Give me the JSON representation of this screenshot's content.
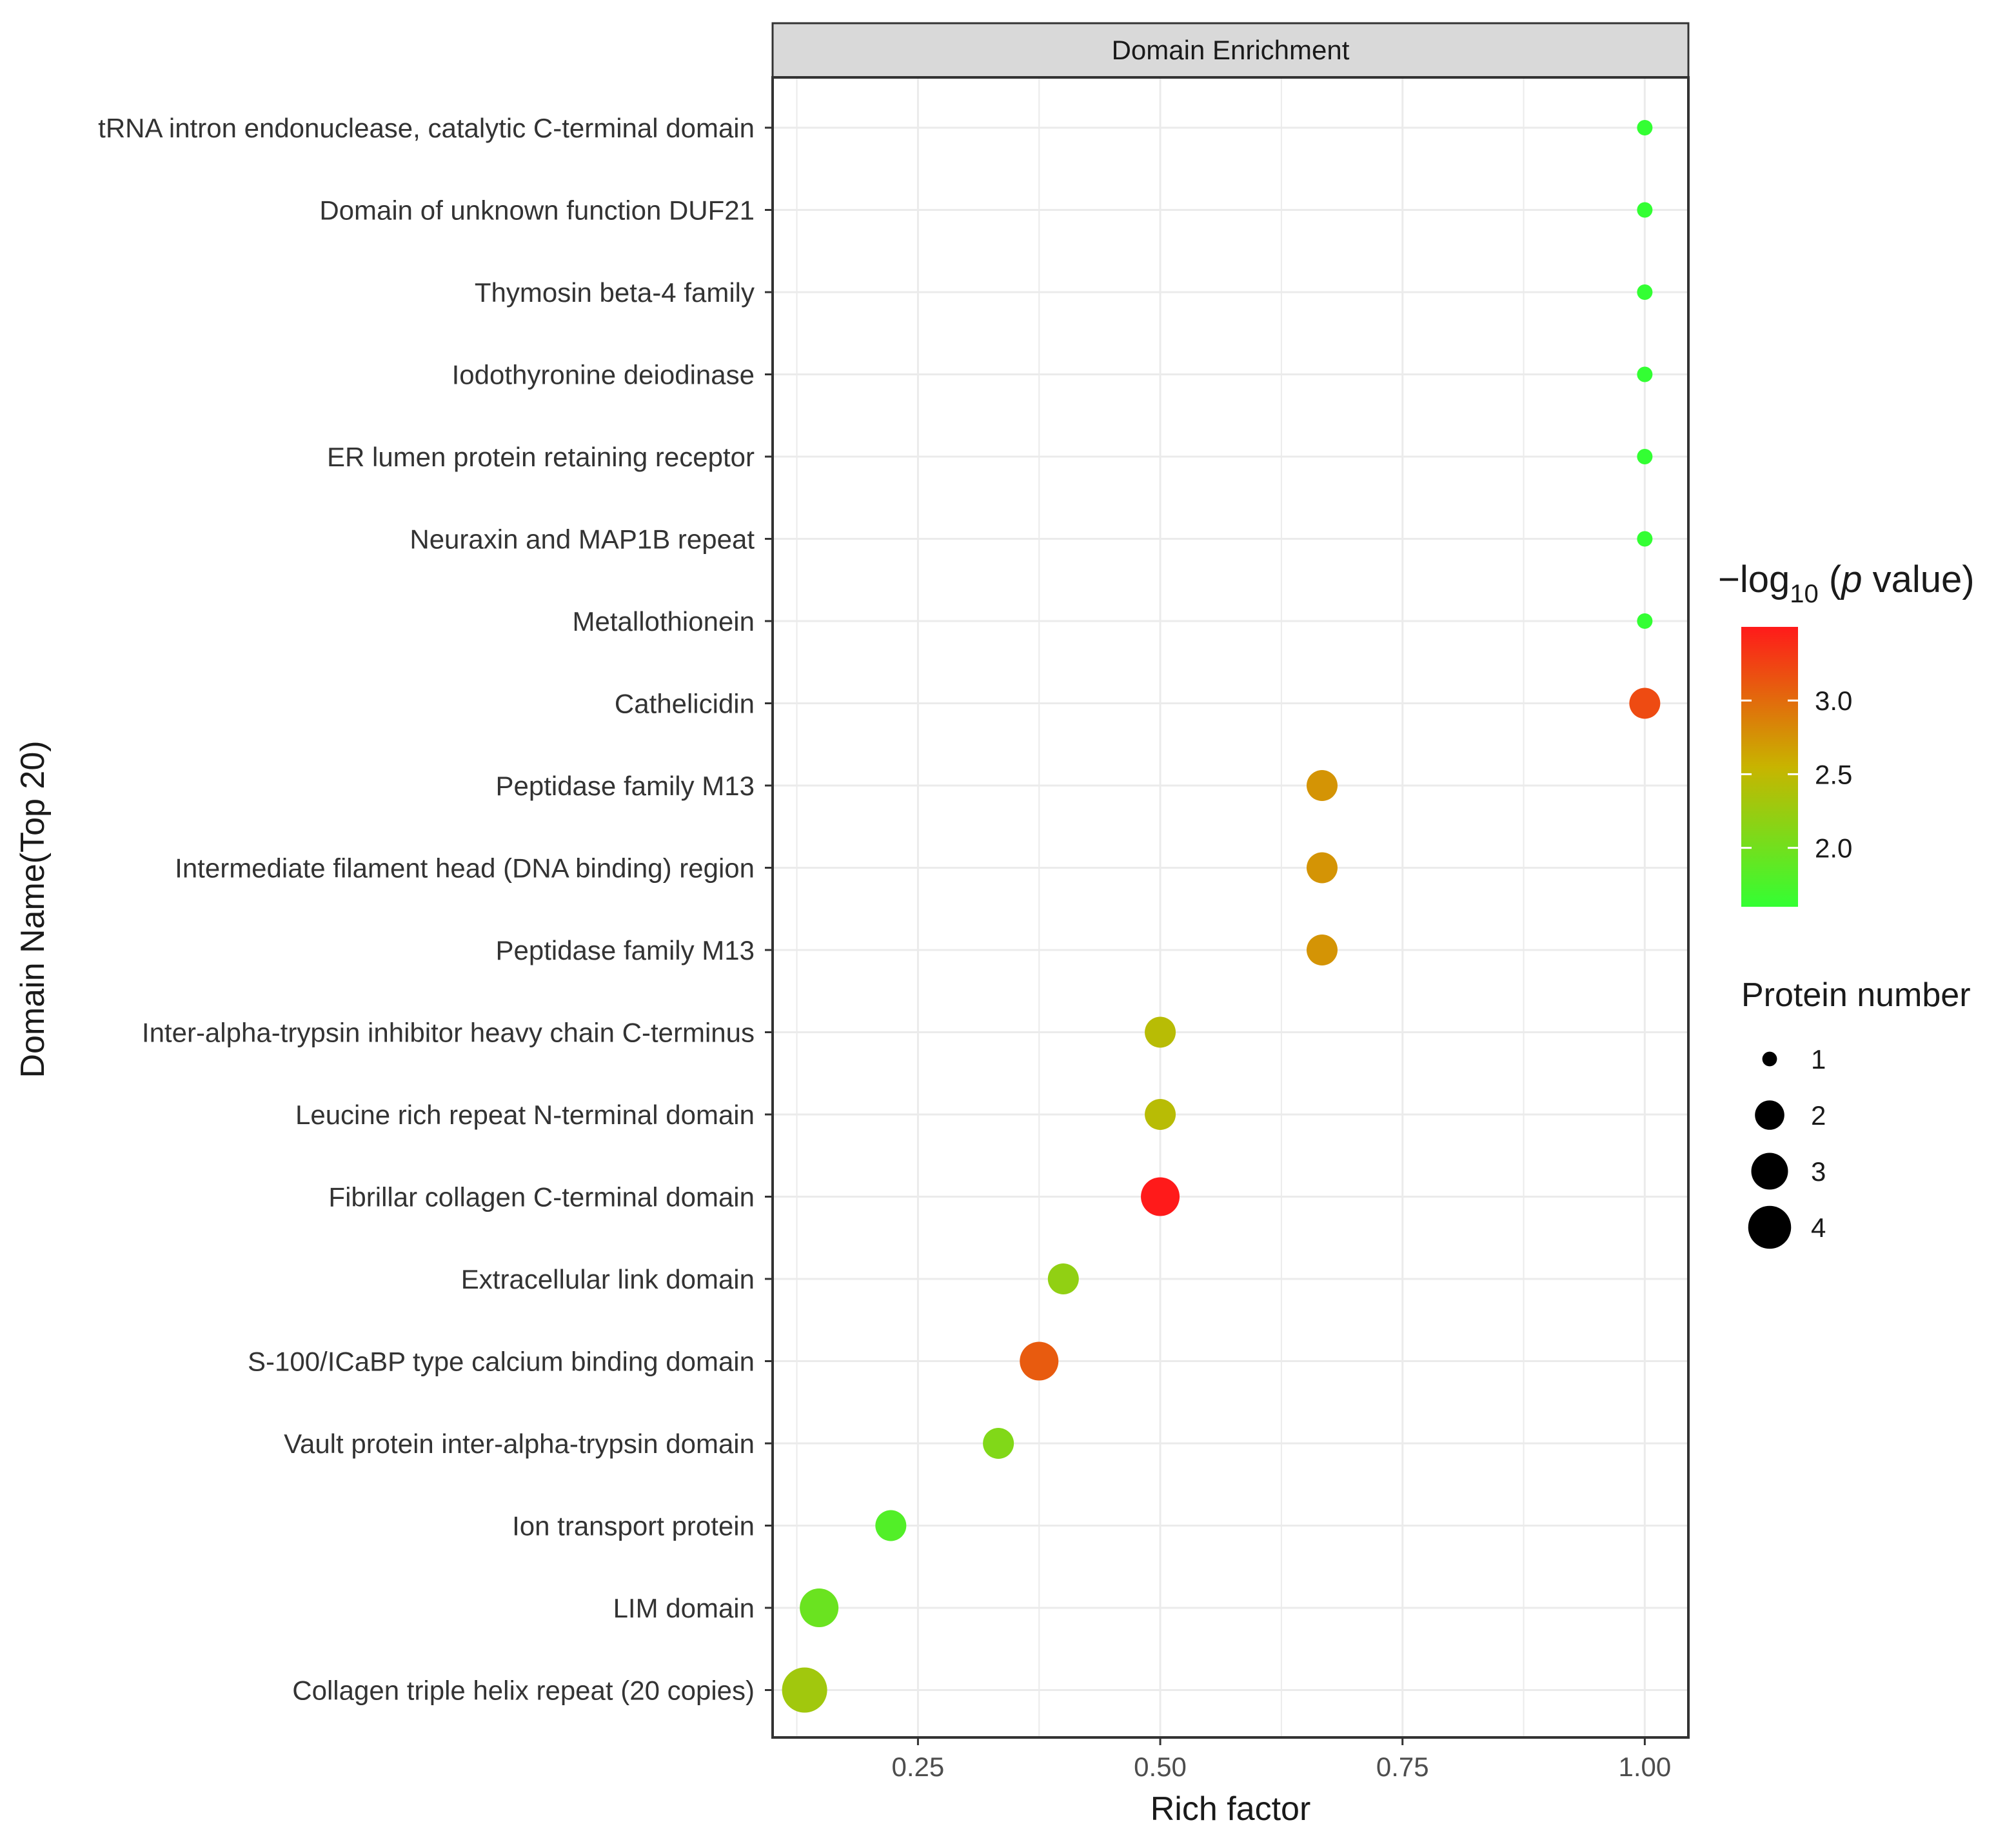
{
  "chart_data": {
    "type": "scatter",
    "title": "Domain Enrichment",
    "xlabel": "Rich factor",
    "ylabel": "Domain Name(Top 20)",
    "xlim": [
      0.1,
      1.045
    ],
    "xticks": [
      0.25,
      0.5,
      0.75,
      1.0
    ],
    "xtick_labels": [
      "0.25",
      "0.50",
      "0.75",
      "1.00"
    ],
    "grid": true,
    "legend_position": "right",
    "color_legend": {
      "title_main": "−log",
      "title_sub": "10",
      "title_paren_open": " (",
      "title_p": "p",
      "title_rest": " value)",
      "min": 1.6,
      "max": 3.5,
      "ticks": [
        3.0,
        2.5,
        2.0
      ],
      "tick_labels": [
        "3.0",
        "2.5",
        "2.0"
      ],
      "color_low": "#33ff33",
      "color_mid": "#c8b400",
      "color_high": "#ff1a1a"
    },
    "size_legend": {
      "title": "Protein number",
      "values": [
        1,
        2,
        3,
        4
      ],
      "labels": [
        "1",
        "2",
        "3",
        "4"
      ]
    },
    "points": [
      {
        "label": "tRNA intron endonuclease, catalytic C-terminal domain",
        "x": 1.0,
        "size": 1,
        "neglog10p": 1.6
      },
      {
        "label": "Domain of unknown function DUF21",
        "x": 1.0,
        "size": 1,
        "neglog10p": 1.6
      },
      {
        "label": "Thymosin beta-4 family",
        "x": 1.0,
        "size": 1,
        "neglog10p": 1.6
      },
      {
        "label": "Iodothyronine deiodinase",
        "x": 1.0,
        "size": 1,
        "neglog10p": 1.6
      },
      {
        "label": "ER lumen protein retaining receptor",
        "x": 1.0,
        "size": 1,
        "neglog10p": 1.6
      },
      {
        "label": "Neuraxin and MAP1B repeat",
        "x": 1.0,
        "size": 1,
        "neglog10p": 1.6
      },
      {
        "label": "Metallothionein",
        "x": 1.0,
        "size": 1,
        "neglog10p": 1.6
      },
      {
        "label": "Cathelicidin",
        "x": 1.0,
        "size": 2,
        "neglog10p": 3.2
      },
      {
        "label": "Peptidase family M13",
        "x": 0.667,
        "size": 2,
        "neglog10p": 2.75
      },
      {
        "label": "Intermediate filament head (DNA binding) region",
        "x": 0.667,
        "size": 2,
        "neglog10p": 2.75
      },
      {
        "label": "Peptidase family M13",
        "x": 0.667,
        "size": 2,
        "neglog10p": 2.75
      },
      {
        "label": "Inter-alpha-trypsin inhibitor heavy chain C-terminus",
        "x": 0.5,
        "size": 2,
        "neglog10p": 2.45
      },
      {
        "label": "Leucine rich repeat N-terminal domain",
        "x": 0.5,
        "size": 2,
        "neglog10p": 2.45
      },
      {
        "label": "Fibrillar collagen C-terminal domain",
        "x": 0.5,
        "size": 3,
        "neglog10p": 3.5
      },
      {
        "label": "Extracellular link domain",
        "x": 0.4,
        "size": 2,
        "neglog10p": 2.2
      },
      {
        "label": "S-100/ICaBP type calcium binding domain",
        "x": 0.375,
        "size": 3,
        "neglog10p": 3.1
      },
      {
        "label": "Vault protein inter-alpha-trypsin domain",
        "x": 0.333,
        "size": 2,
        "neglog10p": 2.1
      },
      {
        "label": "Ion transport protein",
        "x": 0.222,
        "size": 2,
        "neglog10p": 1.8
      },
      {
        "label": "LIM domain",
        "x": 0.148,
        "size": 3,
        "neglog10p": 1.95
      },
      {
        "label": "Collagen triple helix repeat (20 copies)",
        "x": 0.133,
        "size": 4,
        "neglog10p": 2.3
      }
    ]
  }
}
